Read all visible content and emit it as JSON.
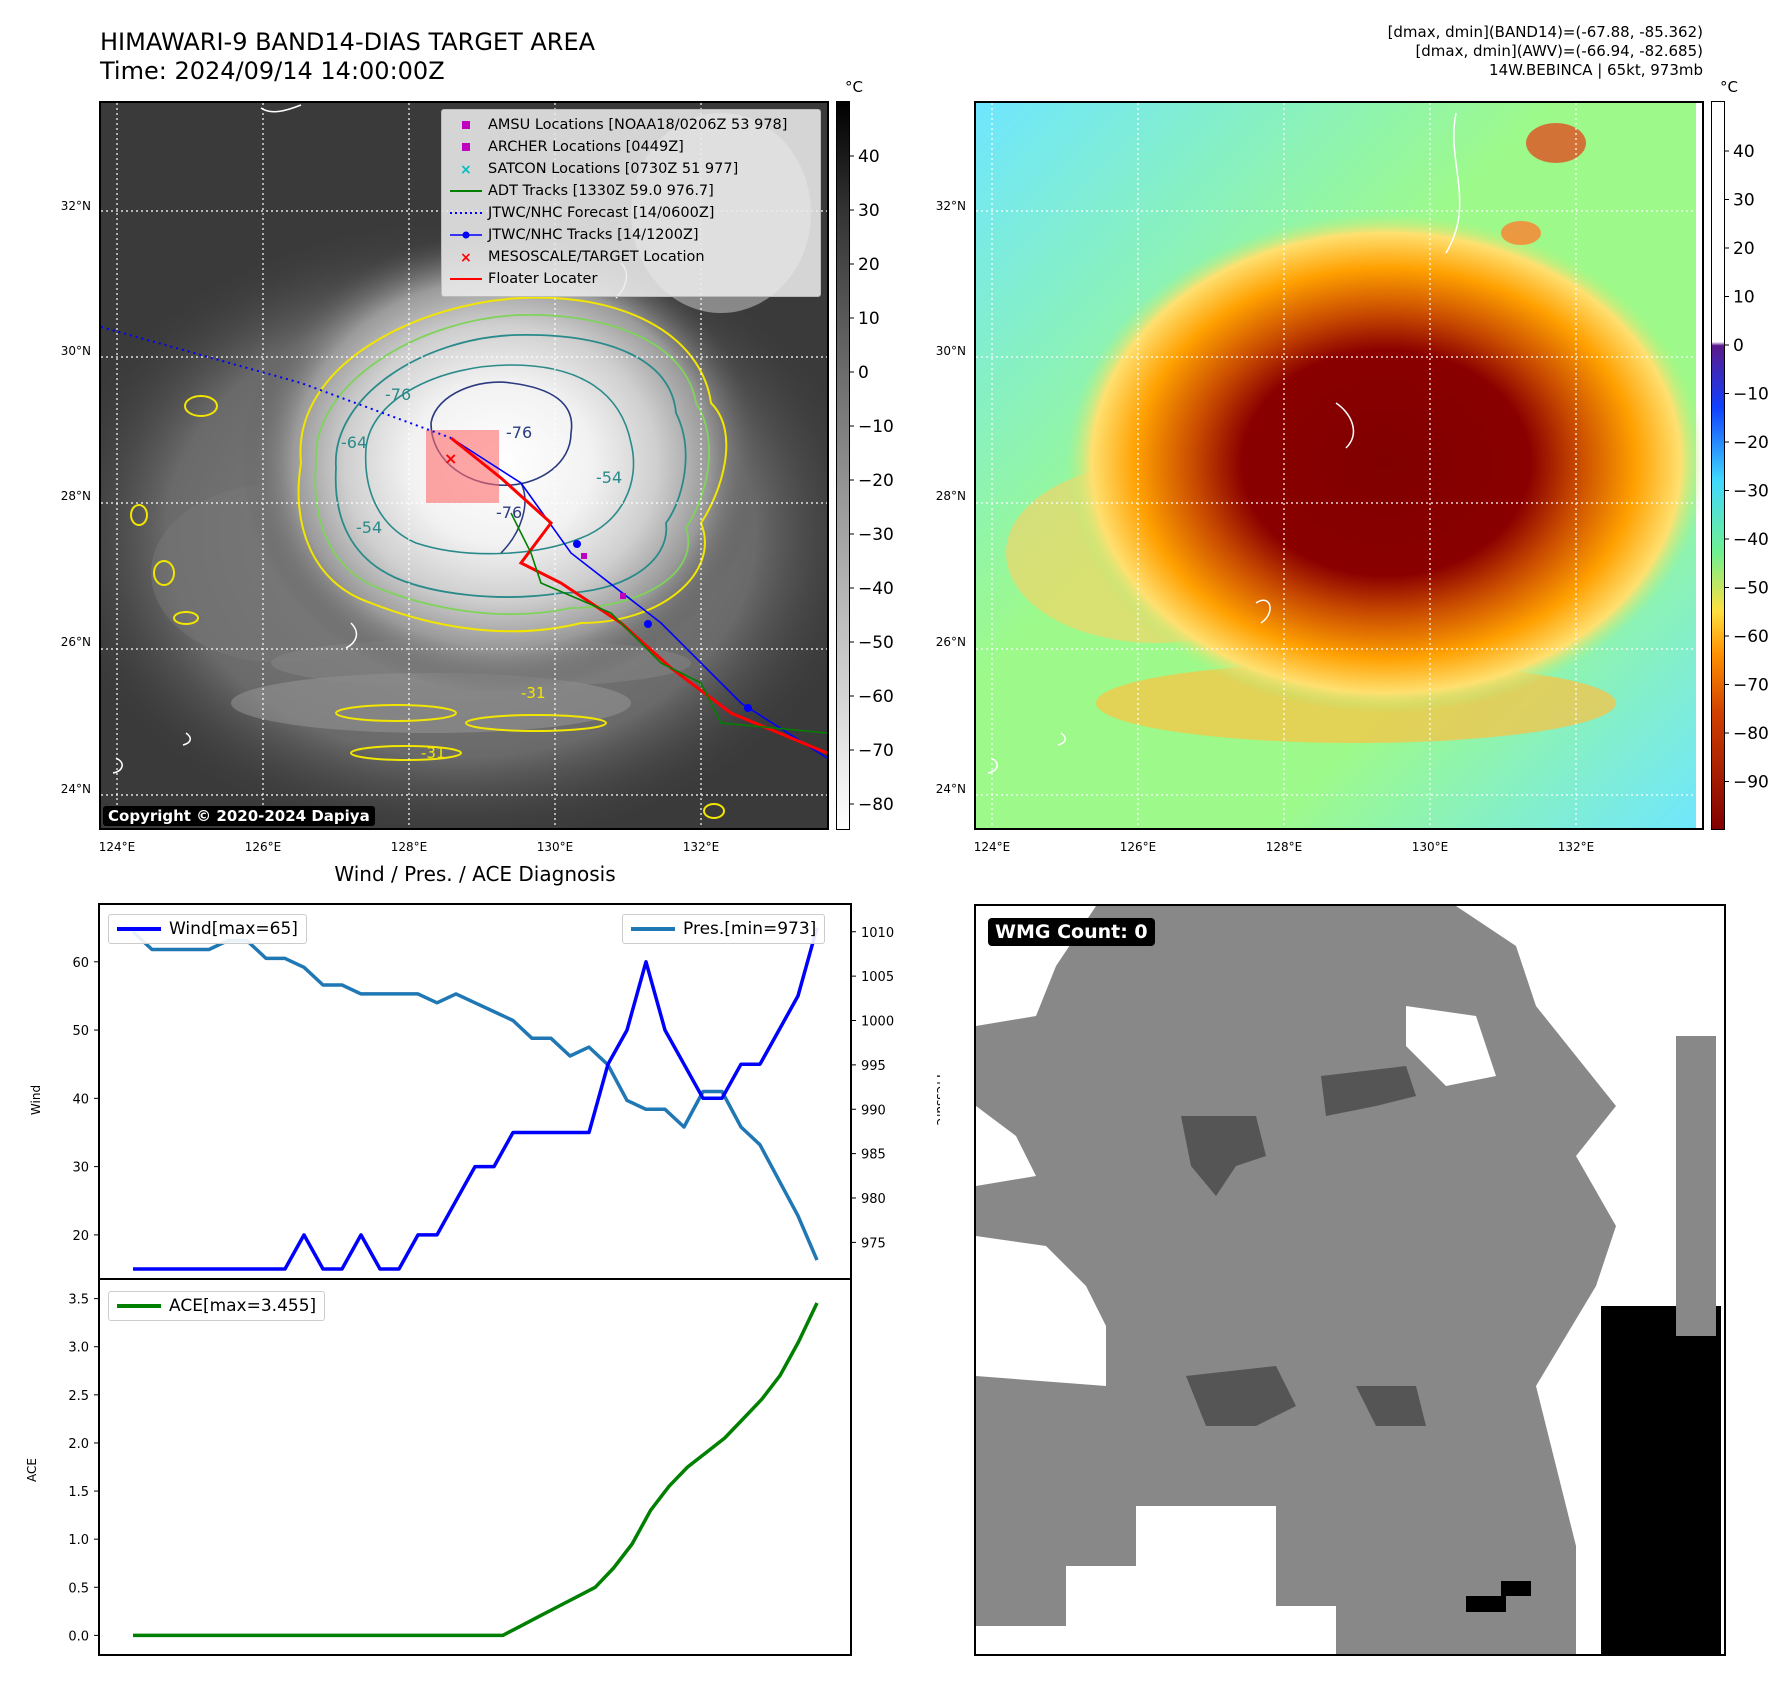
{
  "header": {
    "title": "HIMAWARI-9 BAND14-DIAS TARGET AREA",
    "time": "Time: 2024/09/14 14:00:00Z",
    "info_line1": "[dmax, dmin](BAND14)=(-67.88, -85.362)",
    "info_line2": "[dmax, dmin](AWV)=(-66.94, -82.685)",
    "info_line3": "14W.BEBINCA | 65kt, 973mb",
    "unit": "°C"
  },
  "map": {
    "lat_labels": [
      "32°N",
      "30°N",
      "28°N",
      "26°N",
      "24°N"
    ],
    "lon_labels": [
      "124°E",
      "126°E",
      "128°E",
      "130°E",
      "132°E"
    ],
    "copyright": "Copyright © 2020-2024 Dapiya",
    "contour_labels": [
      "-76",
      "-76",
      "-76",
      "-64",
      "-54",
      "-54",
      "-31",
      "-31"
    ],
    "legend": [
      {
        "label": "AMSU Locations [NOAA18/0206Z 53 978]",
        "color": "#bf00bf",
        "marker": "square"
      },
      {
        "label": "ARCHER Locations [0449Z]",
        "color": "#bf00bf",
        "marker": "square"
      },
      {
        "label": "SATCON Locations [0730Z 51 977]",
        "color": "#00bfbf",
        "marker": "x"
      },
      {
        "label": "ADT Tracks [1330Z 59.0 976.7]",
        "color": "#008000",
        "marker": "line"
      },
      {
        "label": "JTWC/NHC Forecast [14/0600Z]",
        "color": "#0000ff",
        "marker": "dotted"
      },
      {
        "label": "JTWC/NHC Tracks [14/1200Z]",
        "color": "#0000ff",
        "marker": "line-dot"
      },
      {
        "label": "MESOSCALE/TARGET Location",
        "color": "#ff0000",
        "marker": "x"
      },
      {
        "label": "Floater Locater",
        "color": "#ff0000",
        "marker": "line"
      }
    ],
    "cbar_left_ticks": [
      "40",
      "30",
      "20",
      "10",
      "0",
      "−10",
      "−20",
      "−30",
      "−40",
      "−50",
      "−60",
      "−70",
      "−80"
    ],
    "cbar_right_ticks": [
      "40",
      "30",
      "20",
      "10",
      "0",
      "−10",
      "−20",
      "−30",
      "−40",
      "−50",
      "−60",
      "−70",
      "−80",
      "−90"
    ]
  },
  "chart_data": [
    {
      "type": "line",
      "title": "Wind / Pres. / ACE Diagnosis",
      "ylabel": "Wind",
      "ylabel2": "Pressure",
      "ylim": [
        15,
        67
      ],
      "ylim2": [
        972,
        1012
      ],
      "yticks": [
        20,
        30,
        40,
        50,
        60
      ],
      "yticks2": [
        975,
        980,
        985,
        990,
        995,
        1000,
        1005,
        1010
      ],
      "series": [
        {
          "name": "Wind[max=65]",
          "color": "#0000ff",
          "values": [
            15,
            15,
            15,
            15,
            15,
            15,
            15,
            15,
            15,
            20,
            15,
            15,
            20,
            15,
            15,
            20,
            20,
            25,
            30,
            30,
            35,
            35,
            35,
            35,
            35,
            45,
            50,
            60,
            50,
            45,
            40,
            40,
            45,
            45,
            50,
            55,
            65
          ]
        },
        {
          "name": "Pres.[min=973]",
          "color": "#1f77b4",
          "axis": "right",
          "values": [
            1010,
            1008,
            1008,
            1008,
            1008,
            1009,
            1009,
            1007,
            1007,
            1006,
            1004,
            1004,
            1003,
            1003,
            1003,
            1003,
            1002,
            1003,
            1002,
            1001,
            1000,
            998,
            998,
            996,
            997,
            995,
            991,
            990,
            990,
            988,
            992,
            992,
            988,
            986,
            982,
            978,
            973
          ]
        }
      ]
    },
    {
      "type": "line",
      "ylabel": "ACE",
      "ylim": [
        -0.1,
        3.6
      ],
      "yticks": [
        "0.0",
        "0.5",
        "1.0",
        "1.5",
        "2.0",
        "2.5",
        "3.0",
        "3.5"
      ],
      "series": [
        {
          "name": "ACE[max=3.455]",
          "color": "#008000",
          "values": [
            0,
            0,
            0,
            0,
            0,
            0,
            0,
            0,
            0,
            0,
            0,
            0,
            0,
            0,
            0,
            0,
            0,
            0,
            0,
            0,
            0,
            0.1,
            0.2,
            0.3,
            0.4,
            0.5,
            0.7,
            0.95,
            1.3,
            1.55,
            1.75,
            1.9,
            2.05,
            2.25,
            2.45,
            2.7,
            3.05,
            3.455
          ]
        }
      ]
    }
  ],
  "wmg": {
    "label": "WMG Count: 0"
  }
}
